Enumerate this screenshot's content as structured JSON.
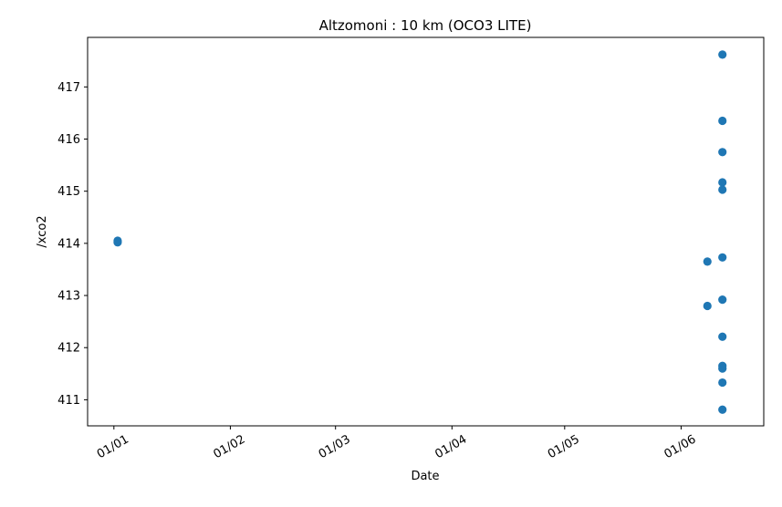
{
  "chart_data": {
    "type": "scatter",
    "title": "Altzomoni : 10 km (OCO3 LITE)",
    "xlabel": "Date",
    "ylabel": "/xco2",
    "x_ticks": [
      "01/01",
      "01/02",
      "01/03",
      "01/04",
      "01/05",
      "01/06"
    ],
    "y_ticks": [
      "411",
      "412",
      "413",
      "414",
      "415",
      "416",
      "417"
    ],
    "xlim": [
      "2020-12-25",
      "2021-06-23"
    ],
    "ylim": [
      410.5,
      417.95
    ],
    "marker_color": "#1f77b4",
    "grid": false,
    "series": [
      {
        "points": [
          {
            "x": "2021-01-02",
            "y": 414.05
          },
          {
            "x": "2021-01-02",
            "y": 414.02
          },
          {
            "x": "2021-06-08",
            "y": 413.65
          },
          {
            "x": "2021-06-08",
            "y": 412.8
          },
          {
            "x": "2021-06-12",
            "y": 417.62
          },
          {
            "x": "2021-06-12",
            "y": 416.35
          },
          {
            "x": "2021-06-12",
            "y": 415.75
          },
          {
            "x": "2021-06-12",
            "y": 415.17
          },
          {
            "x": "2021-06-12",
            "y": 415.03
          },
          {
            "x": "2021-06-12",
            "y": 413.73
          },
          {
            "x": "2021-06-12",
            "y": 412.92
          },
          {
            "x": "2021-06-12",
            "y": 412.21
          },
          {
            "x": "2021-06-12",
            "y": 411.65
          },
          {
            "x": "2021-06-12",
            "y": 411.6
          },
          {
            "x": "2021-06-12",
            "y": 411.33
          },
          {
            "x": "2021-06-12",
            "y": 410.81
          }
        ]
      }
    ]
  }
}
